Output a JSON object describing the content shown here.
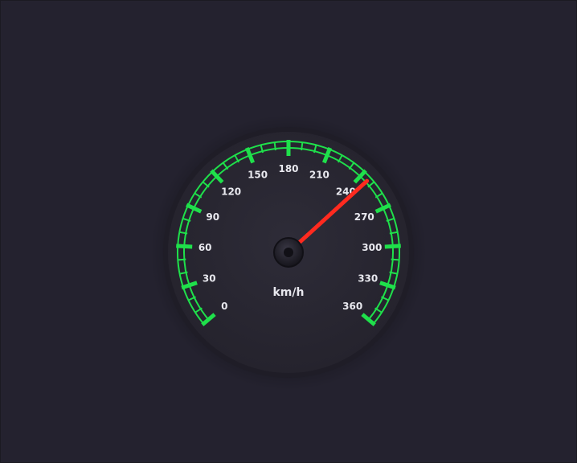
{
  "gauge": {
    "unit": "km/h",
    "min": 0,
    "max": 360,
    "major_step": 30,
    "minor_per_major": 3,
    "value": 246,
    "labels": [
      "0",
      "30",
      "60",
      "90",
      "120",
      "150",
      "180",
      "210",
      "240",
      "270",
      "300",
      "330",
      "360"
    ],
    "colors": {
      "background": "#24222f",
      "dial": "#2a2833",
      "scale": "#1fe04b",
      "needle": "#ff2a1f",
      "text": "#e8e8ee"
    }
  }
}
